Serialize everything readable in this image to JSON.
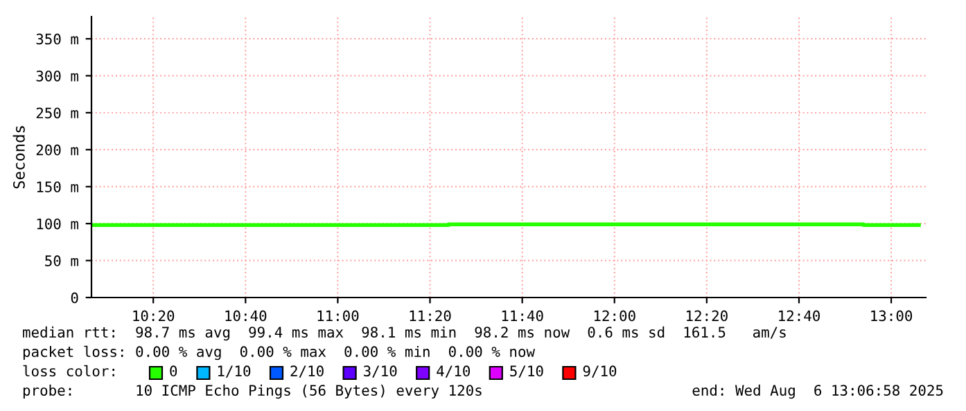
{
  "chart_data": {
    "type": "step",
    "ylabel": "Seconds",
    "x": [
      10.117,
      11.4,
      12.9,
      13.1
    ],
    "series": [
      {
        "name": "0",
        "color": "#26ff00",
        "values": [
          98,
          99,
          98,
          98
        ]
      },
      {
        "name": "1/10",
        "color": "#00b8ff",
        "values": [
          null,
          null,
          null,
          null
        ]
      },
      {
        "name": "2/10",
        "color": "#0059ff",
        "values": [
          null,
          null,
          null,
          null
        ]
      },
      {
        "name": "3/10",
        "color": "#5e00ff",
        "values": [
          null,
          null,
          null,
          null
        ]
      },
      {
        "name": "4/10",
        "color": "#7e00ff",
        "values": [
          null,
          null,
          null,
          null
        ]
      },
      {
        "name": "5/10",
        "color": "#dd00ff",
        "values": [
          null,
          null,
          null,
          null
        ]
      },
      {
        "name": "9/10",
        "color": "#ff0000",
        "values": [
          null,
          null,
          null,
          null
        ]
      }
    ],
    "legend_title": "loss color:",
    "legend": "bottom",
    "xlim": [
      10.11,
      13.125
    ],
    "xticks": [
      {
        "value": 10.3333,
        "label": "10:20"
      },
      {
        "value": 10.6667,
        "label": "10:40"
      },
      {
        "value": 11,
        "label": "11:00"
      },
      {
        "value": 11.3333,
        "label": "11:20"
      },
      {
        "value": 11.6667,
        "label": "11:40"
      },
      {
        "value": 12,
        "label": "12:00"
      },
      {
        "value": 12.3333,
        "label": "12:20"
      },
      {
        "value": 12.6667,
        "label": "12:40"
      },
      {
        "value": 13,
        "label": "13:00"
      }
    ],
    "ylim": [
      0,
      380
    ],
    "yticks": [
      0,
      {
        "value": 50,
        "label": "50 m"
      },
      {
        "value": 100,
        "label": "100 m"
      },
      {
        "value": 150,
        "label": "150 m"
      },
      {
        "value": 200,
        "label": "200 m"
      },
      {
        "value": 250,
        "label": "250 m"
      },
      {
        "value": 300,
        "label": "300 m"
      },
      {
        "value": 350,
        "label": "350 m"
      }
    ],
    "grid": true,
    "annotations": [
      "median rtt:  98.7 ms avg  99.4 ms max  98.1 ms min  98.2 ms now  0.6 ms sd  161.5   am/s",
      "packet loss: 0.00 % avg  0.00 % max  0.00 % min  0.00 % now",
      "probe:       10 ICMP Echo Pings (56 Bytes) every 120s",
      "end: Wed Aug  6 13:06:58 2025"
    ]
  }
}
